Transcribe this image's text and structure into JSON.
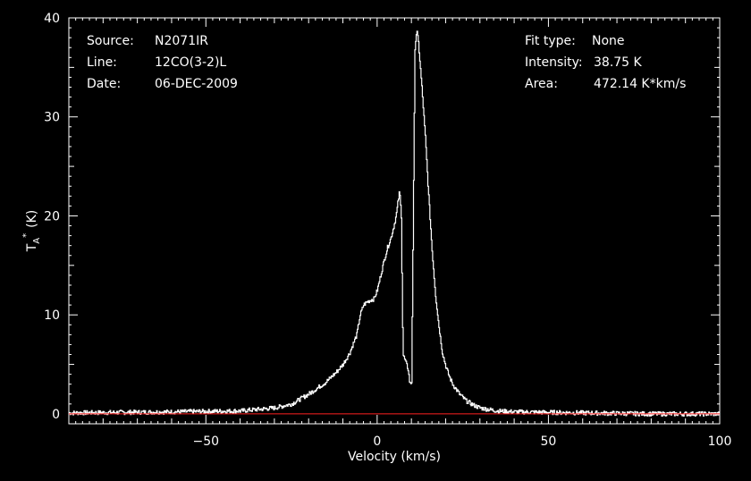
{
  "header_left": {
    "source_label": "Source:",
    "source_value": "N2071IR",
    "line_label": "Line:",
    "line_value": "12CO(3-2)L",
    "date_label": "Date:",
    "date_value": "06-DEC-2009"
  },
  "header_right": {
    "fit_label": "Fit type:",
    "fit_value": "None",
    "intensity_label": "Intensity:",
    "intensity_value": "38.75 K",
    "area_label": "Area:",
    "area_value": "472.14 K*km/s"
  },
  "chart_data": {
    "type": "line",
    "xlabel": "Velocity (km/s)",
    "ylabel_main": "T",
    "ylabel_sub": "A",
    "ylabel_sup": "*",
    "ylabel_unit": "(K)",
    "xlim": [
      -90,
      100
    ],
    "ylim": [
      -1,
      40
    ],
    "xticks": [
      -50,
      0,
      50,
      100
    ],
    "xtick_labels": [
      "−50",
      "0",
      "50",
      "100"
    ],
    "yticks": [
      0,
      10,
      20,
      30,
      40
    ],
    "ytick_labels": [
      "0",
      "10",
      "20",
      "30",
      "40"
    ],
    "baseline": 0,
    "colors": {
      "spectrum": "#ffffff",
      "baseline": "#ff2020",
      "axes": "#ffffff"
    },
    "series": [
      {
        "x": [
          -90,
          -60,
          -40,
          -30,
          -25,
          -20,
          -15,
          -12,
          -10,
          -8,
          -6,
          -5,
          -4,
          -3,
          -2,
          -1,
          0,
          1,
          2,
          3,
          4,
          5,
          5.5,
          6,
          6.5,
          7,
          7.5,
          8,
          8.5,
          9,
          9.5,
          10,
          10.5,
          11,
          11.5,
          12,
          13,
          14,
          15,
          16,
          17,
          18,
          19,
          20,
          21,
          22,
          24,
          26,
          28,
          30,
          35,
          40,
          60,
          80,
          100
        ],
        "y": [
          0.1,
          0.2,
          0.3,
          0.6,
          1.0,
          2.0,
          3.2,
          4.2,
          5.0,
          6.2,
          8.0,
          10.0,
          11.0,
          11.3,
          11.5,
          11.6,
          12.5,
          14.0,
          15.5,
          16.8,
          17.8,
          19.2,
          20.0,
          21.3,
          22.5,
          20.0,
          6.0,
          5.5,
          5.0,
          4.5,
          3.0,
          3.2,
          20.0,
          37.0,
          38.75,
          37.5,
          33.0,
          28.0,
          22.0,
          16.5,
          12.0,
          8.8,
          6.2,
          4.8,
          3.8,
          3.0,
          2.0,
          1.3,
          0.9,
          0.6,
          0.3,
          0.2,
          0.1,
          0.0,
          0.0
        ]
      }
    ]
  }
}
